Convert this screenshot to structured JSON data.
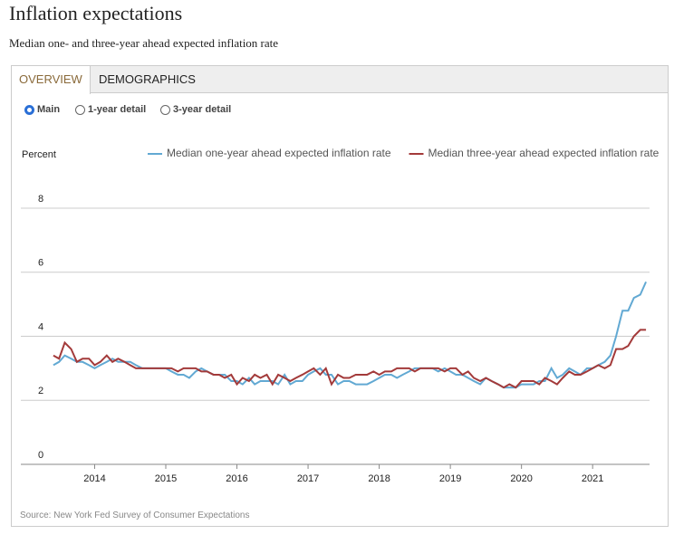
{
  "header": {
    "title": "Inflation expectations",
    "subtitle": "Median one- and three-year ahead expected inflation rate"
  },
  "tabs": [
    "OVERVIEW",
    "DEMOGRAPHICS"
  ],
  "options": [
    "Main",
    "1-year detail",
    "3-year detail"
  ],
  "chart_data": {
    "type": "line",
    "y_label": "Percent",
    "x": [
      2013.42,
      2013.5,
      2013.58,
      2013.67,
      2013.75,
      2013.83,
      2013.92,
      2014,
      2014.08,
      2014.17,
      2014.25,
      2014.33,
      2014.42,
      2014.5,
      2014.58,
      2014.67,
      2014.75,
      2014.83,
      2014.92,
      2015,
      2015.08,
      2015.17,
      2015.25,
      2015.33,
      2015.42,
      2015.5,
      2015.58,
      2015.67,
      2015.75,
      2015.83,
      2015.92,
      2016,
      2016.08,
      2016.17,
      2016.25,
      2016.33,
      2016.42,
      2016.5,
      2016.58,
      2016.67,
      2016.75,
      2016.83,
      2016.92,
      2017,
      2017.08,
      2017.17,
      2017.25,
      2017.33,
      2017.42,
      2017.5,
      2017.58,
      2017.67,
      2017.75,
      2017.83,
      2017.92,
      2018,
      2018.08,
      2018.17,
      2018.25,
      2018.33,
      2018.42,
      2018.5,
      2018.58,
      2018.67,
      2018.75,
      2018.83,
      2018.92,
      2019,
      2019.08,
      2019.17,
      2019.25,
      2019.33,
      2019.42,
      2019.5,
      2019.58,
      2019.67,
      2019.75,
      2019.83,
      2019.92,
      2020,
      2020.08,
      2020.17,
      2020.25,
      2020.33,
      2020.42,
      2020.5,
      2020.58,
      2020.67,
      2020.75,
      2020.83,
      2020.92,
      2021,
      2021.08,
      2021.17,
      2021.25,
      2021.33,
      2021.42,
      2021.5,
      2021.58,
      2021.67,
      2021.75
    ],
    "series": [
      {
        "name": "Median one-year ahead expected inflation rate",
        "color": "#62a9d3",
        "values": [
          3.1,
          3.2,
          3.4,
          3.3,
          3.2,
          3.2,
          3.1,
          3.0,
          3.1,
          3.2,
          3.3,
          3.2,
          3.2,
          3.2,
          3.1,
          3.0,
          3.0,
          3.0,
          3.0,
          3.0,
          2.9,
          2.8,
          2.8,
          2.7,
          2.9,
          3.0,
          2.9,
          2.8,
          2.8,
          2.8,
          2.6,
          2.6,
          2.5,
          2.7,
          2.5,
          2.6,
          2.6,
          2.6,
          2.5,
          2.8,
          2.5,
          2.6,
          2.6,
          2.8,
          2.9,
          3.0,
          2.8,
          2.8,
          2.5,
          2.6,
          2.6,
          2.5,
          2.5,
          2.5,
          2.6,
          2.7,
          2.8,
          2.8,
          2.7,
          2.8,
          2.9,
          3.0,
          3.0,
          3.0,
          3.0,
          2.9,
          3.0,
          2.9,
          2.8,
          2.8,
          2.7,
          2.6,
          2.5,
          2.7,
          2.6,
          2.5,
          2.4,
          2.4,
          2.4,
          2.5,
          2.5,
          2.5,
          2.6,
          2.6,
          3.0,
          2.7,
          2.8,
          3.0,
          2.9,
          2.8,
          3.0,
          3.0,
          3.1,
          3.2,
          3.4,
          4.0,
          4.8,
          4.8,
          5.2,
          5.3,
          5.7
        ]
      },
      {
        "name": "Median three-year ahead expected inflation rate",
        "color": "#a33a3a",
        "values": [
          3.4,
          3.3,
          3.8,
          3.6,
          3.2,
          3.3,
          3.3,
          3.1,
          3.2,
          3.4,
          3.2,
          3.3,
          3.2,
          3.1,
          3.0,
          3.0,
          3.0,
          3.0,
          3.0,
          3.0,
          3.0,
          2.9,
          3.0,
          3.0,
          3.0,
          2.9,
          2.9,
          2.8,
          2.8,
          2.7,
          2.8,
          2.5,
          2.7,
          2.6,
          2.8,
          2.7,
          2.8,
          2.5,
          2.8,
          2.7,
          2.6,
          2.7,
          2.8,
          2.9,
          3.0,
          2.8,
          3.0,
          2.5,
          2.8,
          2.7,
          2.7,
          2.8,
          2.8,
          2.8,
          2.9,
          2.8,
          2.9,
          2.9,
          3.0,
          3.0,
          3.0,
          2.9,
          3.0,
          3.0,
          3.0,
          3.0,
          2.9,
          3.0,
          3.0,
          2.8,
          2.9,
          2.7,
          2.6,
          2.7,
          2.6,
          2.5,
          2.4,
          2.5,
          2.4,
          2.6,
          2.6,
          2.6,
          2.5,
          2.7,
          2.6,
          2.5,
          2.7,
          2.9,
          2.8,
          2.8,
          2.9,
          3.0,
          3.1,
          3.0,
          3.1,
          3.6,
          3.6,
          3.7,
          4.0,
          4.2,
          4.2
        ]
      }
    ],
    "xlim": [
      2013.37,
      2021.8
    ],
    "xticks": [
      2014,
      2015,
      2016,
      2017,
      2018,
      2019,
      2020,
      2021
    ],
    "ylim": [
      0,
      8
    ],
    "yticks": [
      0,
      2,
      4,
      6,
      8
    ],
    "grid": true
  },
  "source": "Source: New York Fed Survey of Consumer Expectations"
}
